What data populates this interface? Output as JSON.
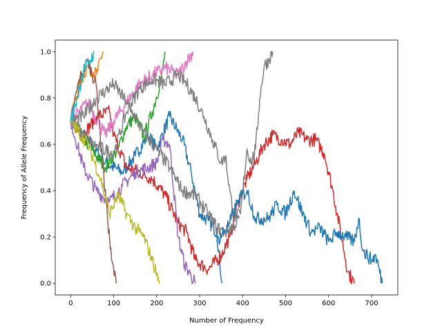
{
  "chart_data": {
    "type": "line",
    "title": "",
    "xlabel": "Number of Frequency",
    "ylabel": "Frequency of Allele Frequency",
    "xlim": [
      -36,
      761
    ],
    "ylim": [
      -0.05,
      1.05
    ],
    "xticks": [
      0,
      100,
      200,
      300,
      400,
      500,
      600,
      700
    ],
    "xtick_labels": [
      "0",
      "100",
      "200",
      "300",
      "400",
      "500",
      "600",
      "700"
    ],
    "yticks": [
      0.0,
      0.2,
      0.4,
      0.6,
      0.8,
      1.0
    ],
    "ytick_labels": [
      "0.0",
      "0.2",
      "0.4",
      "0.6",
      "0.8",
      "1.0"
    ],
    "grid": false,
    "legend": "none",
    "series": [
      {
        "color": "#1f77b4",
        "points": [
          [
            0,
            0.7
          ],
          [
            40,
            0.62
          ],
          [
            80,
            0.52
          ],
          [
            120,
            0.48
          ],
          [
            150,
            0.55
          ],
          [
            180,
            0.64
          ],
          [
            200,
            0.58
          ],
          [
            230,
            0.72
          ],
          [
            260,
            0.62
          ],
          [
            280,
            0.48
          ],
          [
            300,
            0.3
          ],
          [
            320,
            0.27
          ],
          [
            340,
            0.22
          ],
          [
            352,
            0.0
          ]
        ]
      },
      {
        "color": "#ff7f0e",
        "points": [
          [
            0,
            0.7
          ],
          [
            20,
            0.86
          ],
          [
            40,
            0.94
          ],
          [
            60,
            0.9
          ],
          [
            75,
            1.0
          ]
        ]
      },
      {
        "color": "#2ca02c",
        "points": [
          [
            0,
            0.7
          ],
          [
            40,
            0.6
          ],
          [
            80,
            0.5
          ],
          [
            110,
            0.58
          ],
          [
            130,
            0.68
          ],
          [
            150,
            0.72
          ],
          [
            170,
            0.63
          ],
          [
            190,
            0.74
          ],
          [
            210,
            0.88
          ],
          [
            220,
            1.0
          ]
        ]
      },
      {
        "color": "#d62728",
        "points": [
          [
            0,
            0.7
          ],
          [
            30,
            0.64
          ],
          [
            60,
            0.72
          ],
          [
            90,
            0.74
          ],
          [
            100,
            0.64
          ],
          [
            130,
            0.5
          ],
          [
            160,
            0.48
          ],
          [
            190,
            0.45
          ],
          [
            220,
            0.38
          ],
          [
            250,
            0.26
          ],
          [
            270,
            0.22
          ],
          [
            290,
            0.1
          ],
          [
            320,
            0.06
          ],
          [
            350,
            0.12
          ],
          [
            370,
            0.2
          ],
          [
            390,
            0.35
          ],
          [
            410,
            0.45
          ],
          [
            430,
            0.52
          ],
          [
            450,
            0.6
          ],
          [
            470,
            0.64
          ],
          [
            490,
            0.62
          ],
          [
            510,
            0.6
          ],
          [
            530,
            0.65
          ],
          [
            550,
            0.62
          ],
          [
            570,
            0.62
          ],
          [
            590,
            0.56
          ],
          [
            610,
            0.4
          ],
          [
            630,
            0.2
          ],
          [
            645,
            0.05
          ],
          [
            660,
            0.0
          ]
        ]
      },
      {
        "color": "#9467bd",
        "points": [
          [
            0,
            0.7
          ],
          [
            30,
            0.5
          ],
          [
            60,
            0.4
          ],
          [
            90,
            0.35
          ],
          [
            120,
            0.42
          ],
          [
            150,
            0.48
          ],
          [
            180,
            0.5
          ],
          [
            200,
            0.52
          ],
          [
            215,
            0.62
          ],
          [
            230,
            0.6
          ],
          [
            250,
            0.2
          ],
          [
            265,
            0.08
          ],
          [
            278,
            0.04
          ],
          [
            290,
            0.0
          ]
        ]
      },
      {
        "color": "#8c564b",
        "points": [
          [
            0,
            0.7
          ],
          [
            20,
            0.88
          ],
          [
            40,
            0.96
          ],
          [
            60,
            0.85
          ],
          [
            75,
            0.5
          ],
          [
            85,
            0.3
          ],
          [
            95,
            0.1
          ],
          [
            106,
            0.0
          ]
        ]
      },
      {
        "color": "#e377c2",
        "points": [
          [
            0,
            0.7
          ],
          [
            40,
            0.78
          ],
          [
            80,
            0.64
          ],
          [
            100,
            0.7
          ],
          [
            130,
            0.78
          ],
          [
            160,
            0.86
          ],
          [
            190,
            0.9
          ],
          [
            220,
            0.93
          ],
          [
            250,
            0.9
          ],
          [
            270,
            0.96
          ],
          [
            285,
            1.0
          ]
        ]
      },
      {
        "color": "#7f7f7f",
        "points": [
          [
            0,
            0.7
          ],
          [
            50,
            0.6
          ],
          [
            100,
            0.56
          ],
          [
            130,
            0.74
          ],
          [
            160,
            0.84
          ],
          [
            190,
            0.88
          ],
          [
            220,
            0.86
          ],
          [
            250,
            0.9
          ],
          [
            270,
            0.86
          ],
          [
            290,
            0.8
          ],
          [
            310,
            0.72
          ],
          [
            330,
            0.62
          ],
          [
            350,
            0.52
          ],
          [
            360,
            0.55
          ],
          [
            370,
            0.4
          ],
          [
            380,
            0.28
          ],
          [
            395,
            0.3
          ],
          [
            410,
            0.58
          ],
          [
            420,
            0.52
          ],
          [
            430,
            0.58
          ],
          [
            440,
            0.8
          ],
          [
            450,
            0.94
          ],
          [
            460,
            0.96
          ],
          [
            470,
            1.0
          ]
        ]
      },
      {
        "color": "#7f7f7f",
        "points": [
          [
            0,
            0.7
          ],
          [
            30,
            0.72
          ],
          [
            60,
            0.8
          ],
          [
            100,
            0.86
          ],
          [
            130,
            0.78
          ],
          [
            170,
            0.65
          ],
          [
            200,
            0.58
          ],
          [
            230,
            0.5
          ],
          [
            260,
            0.4
          ],
          [
            290,
            0.38
          ],
          [
            320,
            0.3
          ],
          [
            340,
            0.24
          ],
          [
            360,
            0.22
          ],
          [
            380,
            0.25
          ],
          [
            392,
            0.28
          ]
        ]
      },
      {
        "color": "#bcbd22",
        "points": [
          [
            0,
            0.7
          ],
          [
            40,
            0.6
          ],
          [
            70,
            0.45
          ],
          [
            90,
            0.3
          ],
          [
            110,
            0.38
          ],
          [
            130,
            0.3
          ],
          [
            150,
            0.24
          ],
          [
            170,
            0.2
          ],
          [
            190,
            0.1
          ],
          [
            200,
            0.04
          ],
          [
            207,
            0.0
          ]
        ]
      },
      {
        "color": "#17becf",
        "points": [
          [
            0,
            0.7
          ],
          [
            15,
            0.8
          ],
          [
            30,
            0.92
          ],
          [
            45,
            0.96
          ],
          [
            55,
            1.0
          ]
        ]
      },
      {
        "color": "#1f77b4",
        "points": [
          [
            340,
            0.18
          ],
          [
            370,
            0.26
          ],
          [
            390,
            0.36
          ],
          [
            410,
            0.4
          ],
          [
            430,
            0.28
          ],
          [
            460,
            0.28
          ],
          [
            480,
            0.34
          ],
          [
            500,
            0.3
          ],
          [
            520,
            0.4
          ],
          [
            540,
            0.3
          ],
          [
            560,
            0.22
          ],
          [
            580,
            0.24
          ],
          [
            600,
            0.18
          ],
          [
            620,
            0.22
          ],
          [
            640,
            0.2
          ],
          [
            660,
            0.18
          ],
          [
            670,
            0.28
          ],
          [
            680,
            0.14
          ],
          [
            700,
            0.1
          ],
          [
            710,
            0.12
          ],
          [
            725,
            0.0
          ]
        ]
      }
    ]
  }
}
